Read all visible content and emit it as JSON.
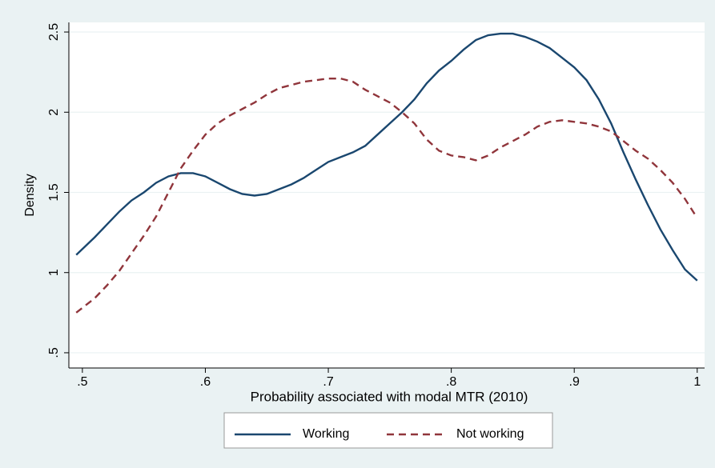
{
  "chart_data": {
    "type": "line",
    "xlabel": "Probability associated with modal MTR (2010)",
    "ylabel": "Density",
    "x": [
      0.495,
      0.51,
      0.52,
      0.53,
      0.54,
      0.55,
      0.56,
      0.57,
      0.58,
      0.59,
      0.6,
      0.61,
      0.62,
      0.63,
      0.64,
      0.65,
      0.66,
      0.67,
      0.68,
      0.69,
      0.7,
      0.71,
      0.72,
      0.73,
      0.74,
      0.75,
      0.76,
      0.77,
      0.78,
      0.79,
      0.8,
      0.81,
      0.82,
      0.83,
      0.84,
      0.85,
      0.86,
      0.87,
      0.88,
      0.89,
      0.9,
      0.91,
      0.92,
      0.93,
      0.94,
      0.95,
      0.96,
      0.97,
      0.98,
      0.99,
      1.0
    ],
    "series": [
      {
        "name": "Working",
        "color": "#1a476f",
        "dash": false,
        "values": [
          1.11,
          1.22,
          1.3,
          1.38,
          1.45,
          1.5,
          1.56,
          1.6,
          1.62,
          1.62,
          1.6,
          1.56,
          1.52,
          1.49,
          1.48,
          1.49,
          1.52,
          1.55,
          1.59,
          1.64,
          1.69,
          1.72,
          1.75,
          1.79,
          1.86,
          1.93,
          2.0,
          2.08,
          2.18,
          2.26,
          2.32,
          2.39,
          2.45,
          2.48,
          2.49,
          2.49,
          2.47,
          2.44,
          2.4,
          2.34,
          2.28,
          2.2,
          2.08,
          1.93,
          1.75,
          1.58,
          1.42,
          1.27,
          1.14,
          1.02,
          0.95
        ]
      },
      {
        "name": "Not working",
        "color": "#90353b",
        "dash": true,
        "values": [
          0.75,
          0.84,
          0.92,
          1.01,
          1.12,
          1.23,
          1.35,
          1.5,
          1.65,
          1.76,
          1.86,
          1.93,
          1.98,
          2.02,
          2.06,
          2.11,
          2.15,
          2.17,
          2.19,
          2.2,
          2.21,
          2.21,
          2.19,
          2.14,
          2.1,
          2.06,
          2.0,
          1.93,
          1.83,
          1.76,
          1.73,
          1.72,
          1.7,
          1.73,
          1.78,
          1.82,
          1.86,
          1.91,
          1.94,
          1.95,
          1.94,
          1.93,
          1.91,
          1.88,
          1.82,
          1.76,
          1.71,
          1.64,
          1.56,
          1.46,
          1.34
        ]
      }
    ],
    "xlim": [
      0.489,
      1.006
    ],
    "ylim": [
      0.405,
      2.56
    ],
    "xticks": [
      {
        "value": 0.5,
        "label": ".5"
      },
      {
        "value": 0.6,
        "label": ".6"
      },
      {
        "value": 0.7,
        "label": ".7"
      },
      {
        "value": 0.8,
        "label": ".8"
      },
      {
        "value": 0.9,
        "label": ".9"
      },
      1
    ],
    "yticks": [
      {
        "value": 0.5,
        "label": ".5"
      },
      1,
      1.5,
      2,
      2.5
    ],
    "grid": true,
    "legend": "bottom"
  }
}
